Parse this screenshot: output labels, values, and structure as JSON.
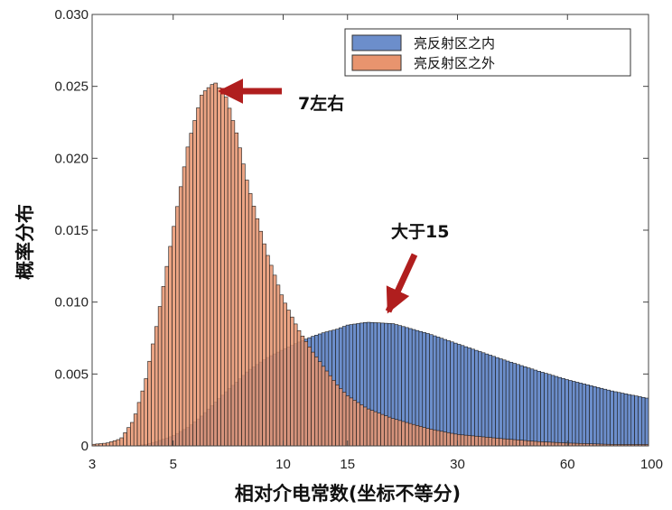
{
  "chart_data": {
    "type": "bar",
    "chart_kind": "histogram",
    "xlabel": "相对介电常数(坐标不等分)",
    "ylabel": "概率分布",
    "x_scale": "log",
    "xlim": [
      3,
      100
    ],
    "ylim": [
      0,
      0.03
    ],
    "x_ticks": [
      3,
      5,
      10,
      15,
      30,
      60,
      100
    ],
    "x_tick_labels": [
      "3",
      "5",
      "10",
      "15",
      "30",
      "60",
      "100"
    ],
    "y_ticks": [
      0,
      0.005,
      0.01,
      0.015,
      0.02,
      0.025,
      0.03
    ],
    "y_tick_labels": [
      "0",
      "0.005",
      "0.010",
      "0.015",
      "0.020",
      "0.025",
      "0.030"
    ],
    "grid": false,
    "legend_position": "top-right",
    "x": [
      3.0,
      3.3,
      3.6,
      3.9,
      4.2,
      4.5,
      5.0,
      5.5,
      6.0,
      6.5,
      7.0,
      7.5,
      8.0,
      9.0,
      10.0,
      11.0,
      12.0,
      13.0,
      14.0,
      15.0,
      17.0,
      20.0,
      25.0,
      30.0,
      40.0,
      50.0,
      60.0,
      80.0,
      100.0
    ],
    "series": [
      {
        "name": "亮反射区之内",
        "color": "#6C8ECB",
        "values": [
          0.0,
          0.0,
          0.0,
          0.0,
          0.0001,
          0.0003,
          0.0007,
          0.0013,
          0.0021,
          0.003,
          0.0038,
          0.0045,
          0.0052,
          0.0061,
          0.0067,
          0.0072,
          0.0076,
          0.0079,
          0.0081,
          0.0084,
          0.0086,
          0.0085,
          0.0078,
          0.0071,
          0.006,
          0.0052,
          0.0046,
          0.0038,
          0.0033
        ]
      },
      {
        "name": "亮反射区之外",
        "color": "#E8946E",
        "values": [
          0.0001,
          0.0002,
          0.0005,
          0.0018,
          0.0045,
          0.0083,
          0.015,
          0.021,
          0.0245,
          0.0253,
          0.0242,
          0.0215,
          0.0182,
          0.0135,
          0.0102,
          0.0081,
          0.0066,
          0.0054,
          0.0043,
          0.0035,
          0.0026,
          0.0019,
          0.0012,
          0.0008,
          0.0005,
          0.0003,
          0.0002,
          0.0001,
          0.0001
        ]
      }
    ],
    "annotations": [
      {
        "text": "7左右",
        "x": 6.5,
        "y": 0.0253
      },
      {
        "text": "大于15",
        "x": 20,
        "y": 0.0087
      }
    ]
  }
}
